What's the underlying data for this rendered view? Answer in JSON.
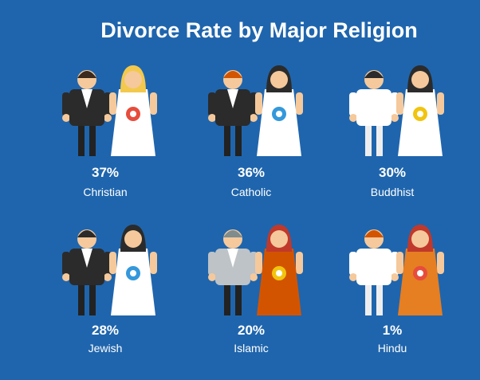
{
  "header": {
    "title": "Divorce Rate by Major Religion"
  },
  "items": [
    {
      "rate": "37%",
      "religion": "Christian"
    },
    {
      "rate": "36%",
      "religion": "Catholic"
    },
    {
      "rate": "30%",
      "religion": "Buddhist"
    },
    {
      "rate": "28%",
      "religion": "Jewish"
    },
    {
      "rate": "20%",
      "religion": "Islamic"
    },
    {
      "rate": "1%",
      "religion": "Hindu"
    }
  ]
}
